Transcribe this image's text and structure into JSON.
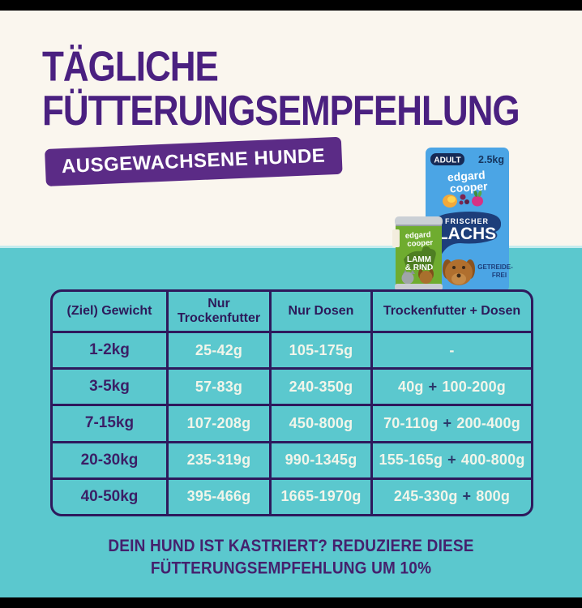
{
  "page": {
    "title_line1": "TÄGLICHE",
    "title_line2": "FÜTTERUNGSEMPFEHLUNG",
    "badge": "AUSGEWACHSENE HUNDE",
    "footnote_line1": "DEIN HUND IST KASTRIERT? REDUZIERE DIESE",
    "footnote_line2": "FÜTTERUNGSEMPFEHLUNG UM 10%"
  },
  "products": {
    "bag": {
      "badge": "ADULT",
      "weight": "2.5kg",
      "brand_line1": "edgard",
      "brand_line2": "cooper",
      "flavor_line1": "FRISCHER",
      "flavor_line2": "LACHS",
      "claim_line1": "GETREIDE-",
      "claim_line2": "FREI"
    },
    "can": {
      "brand_line1": "edgard",
      "brand_line2": "cooper",
      "flavor_line1": "LAMM",
      "flavor_line2": "& RIND"
    }
  },
  "table": {
    "columns": [
      "(Ziel) Gewicht",
      "Nur Trockenfutter",
      "Nur Dosen",
      "Trockenfutter + Dosen"
    ],
    "rows": [
      {
        "weight": "1-2kg",
        "dry": "25-42g",
        "cans": "105-175g",
        "combo": [
          "",
          "",
          "-"
        ]
      },
      {
        "weight": "3-5kg",
        "dry": "57-83g",
        "cans": "240-350g",
        "combo": [
          "40g",
          "+",
          "100-200g"
        ]
      },
      {
        "weight": "7-15kg",
        "dry": "107-208g",
        "cans": "450-800g",
        "combo": [
          "70-110g",
          "+",
          "200-400g"
        ]
      },
      {
        "weight": "20-30kg",
        "dry": "235-319g",
        "cans": "990-1345g",
        "combo": [
          "155-165g",
          "+",
          "400-800g"
        ]
      },
      {
        "weight": "40-50kg",
        "dry": "395-466g",
        "cans": "1665-1970g",
        "combo": [
          "245-330g",
          "+",
          "800g"
        ]
      }
    ]
  },
  "chart_data": {
    "type": "table",
    "title": "Tägliche Fütterungsempfehlung — Ausgewachsene Hunde",
    "columns": [
      "(Ziel) Gewicht",
      "Nur Trockenfutter",
      "Nur Dosen",
      "Trockenfutter + Dosen"
    ],
    "rows": [
      [
        "1-2kg",
        "25-42g",
        "105-175g",
        "-"
      ],
      [
        "3-5kg",
        "57-83g",
        "240-350g",
        "40g + 100-200g"
      ],
      [
        "7-15kg",
        "107-208g",
        "450-800g",
        "70-110g + 200-400g"
      ],
      [
        "20-30kg",
        "235-319g",
        "990-1345g",
        "155-165g + 400-800g"
      ],
      [
        "40-50kg",
        "395-466g",
        "1665-1970g",
        "245-330g + 800g"
      ]
    ],
    "note": "Dein Hund ist kastriert? Reduziere diese Fütterungsempfehlung um 10%"
  },
  "colors": {
    "cream_bg": "#FAF6EE",
    "teal_bg": "#5BC8CE",
    "heading_purple": "#4A2080",
    "badge_bg": "#5B2B86",
    "badge_text": "#FFFFFF",
    "table_border": "#2E195C",
    "table_header_text": "#2D1A5A",
    "table_weight_text": "#3B1F66",
    "table_data_text": "#F2F5EA",
    "plus_sign": "#2B3769",
    "footnote_text": "#45216D",
    "bag_blue": "#4BA5E5",
    "fish_navy": "#1D3E7A",
    "can_green": "#6FAC2F"
  }
}
